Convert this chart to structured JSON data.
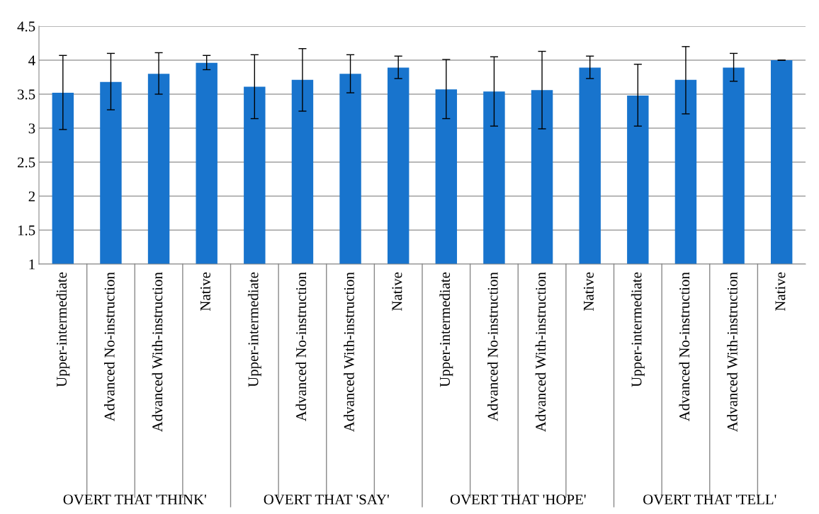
{
  "chart_data": {
    "type": "bar",
    "categories": [
      "Upper-intermediate",
      "Advanced No-instruction",
      "Advanced With-instruction",
      "Native",
      "Upper-intermediate",
      "Advanced No-instruction",
      "Advanced With-instruction",
      "Native",
      "Upper-intermediate",
      "Advanced No-instruction",
      "Advanced With-instruction",
      "Native",
      "Upper-intermediate",
      "Advanced No-instruction",
      "Advanced With-instruction",
      "Native"
    ],
    "values": [
      3.52,
      3.68,
      3.8,
      3.96,
      3.61,
      3.71,
      3.8,
      3.89,
      3.57,
      3.54,
      3.56,
      3.89,
      3.48,
      3.71,
      3.89,
      4.0
    ],
    "errors": [
      [
        2.98,
        4.07
      ],
      [
        3.27,
        4.1
      ],
      [
        3.5,
        4.11
      ],
      [
        3.86,
        4.07
      ],
      [
        3.14,
        4.08
      ],
      [
        3.25,
        4.17
      ],
      [
        3.52,
        4.08
      ],
      [
        3.73,
        4.06
      ],
      [
        3.14,
        4.01
      ],
      [
        3.03,
        4.05
      ],
      [
        2.99,
        4.13
      ],
      [
        3.73,
        4.06
      ],
      [
        3.03,
        3.94
      ],
      [
        3.21,
        4.2
      ],
      [
        3.69,
        4.1
      ],
      [
        4.0,
        4.0
      ]
    ],
    "color": "#1874cd",
    "annotations": [
      "OVERT THAT 'THINK'",
      "OVERT THAT 'SAY'",
      "OVERT THAT 'HOPE'",
      "OVERT THAT 'TELL'"
    ],
    "ylim": [
      1,
      4.5
    ],
    "yticks": [
      1,
      1.5,
      2,
      2.5,
      3,
      3.5,
      4,
      4.5
    ],
    "grid": "y",
    "legend": false
  }
}
